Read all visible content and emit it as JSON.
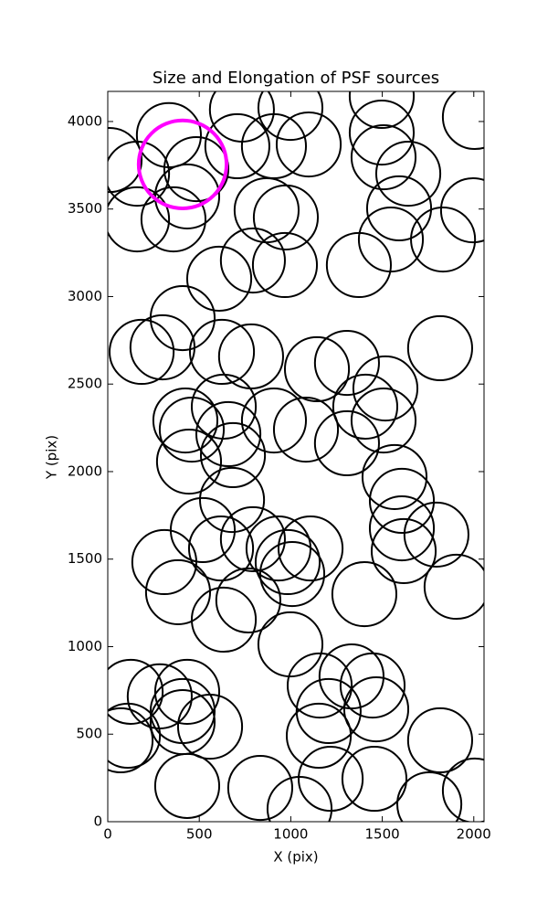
{
  "chart_data": {
    "type": "ellipse",
    "title": "Size and Elongation of PSF sources",
    "x_label": "X (pix)",
    "y_label": "Y (pix)",
    "xlim": [
      0,
      2056
    ],
    "ylim": [
      0,
      4172
    ],
    "xticks": [
      0,
      500,
      1000,
      1500,
      2000
    ],
    "yticks": [
      0,
      500,
      1000,
      1500,
      2000,
      2500,
      3000,
      3500,
      4000
    ],
    "series": [
      {
        "color": "#000000",
        "radius": 175,
        "x": [
          10,
          334,
          160,
          484,
          160,
          359,
          434,
          708,
          733,
          908,
          998,
          1098,
          1497,
          1497,
          1507,
          1642,
          1592,
          1547,
          1832,
          1996,
          2006,
          868,
          973,
          793,
          968,
          609,
          1372,
          409,
          185,
          299,
          624,
          783,
          1816,
          1143,
          1307,
          1517,
          1407,
          1507,
          1307,
          1083,
          908,
          634,
          424,
          459,
          659,
          684,
          444,
          1567,
          679,
          1607,
          519,
          1607,
          1796,
          1617,
          309,
          619,
          793,
          933,
          983,
          1108,
          1008,
          384,
          768,
          634,
          1402,
          1906,
          998,
          125,
          284,
          434,
          409,
          409,
          559,
          110,
          70,
          1158,
          1332,
          1447,
          1207,
          1467,
          1153,
          1816,
          434,
          833,
          1048,
          1218,
          1457,
          1757,
          2006
        ],
        "y": [
          3780,
          3922,
          3702,
          3728,
          3441,
          3441,
          3572,
          3859,
          4068,
          3859,
          4078,
          3869,
          4146,
          3937,
          3796,
          3702,
          3504,
          3326,
          3326,
          3493,
          4026,
          3493,
          3452,
          3206,
          3180,
          3102,
          3180,
          2877,
          2684,
          2710,
          2684,
          2658,
          2705,
          2585,
          2621,
          2475,
          2371,
          2292,
          2162,
          2240,
          2292,
          2371,
          2292,
          2240,
          2214,
          2094,
          2057,
          1969,
          1838,
          1833,
          1666,
          1676,
          1640,
          1546,
          1483,
          1561,
          1614,
          1561,
          1483,
          1561,
          1415,
          1311,
          1264,
          1154,
          1300,
          1342,
          1013,
          742,
          716,
          742,
          632,
          569,
          543,
          491,
          465,
          778,
          830,
          778,
          632,
          642,
          491,
          465,
          204,
          193,
          73,
          245,
          245,
          99,
          178
        ]
      },
      {
        "color": "#ff00ff",
        "radius": 240,
        "x": [
          409
        ],
        "y": [
          3755
        ]
      }
    ]
  }
}
